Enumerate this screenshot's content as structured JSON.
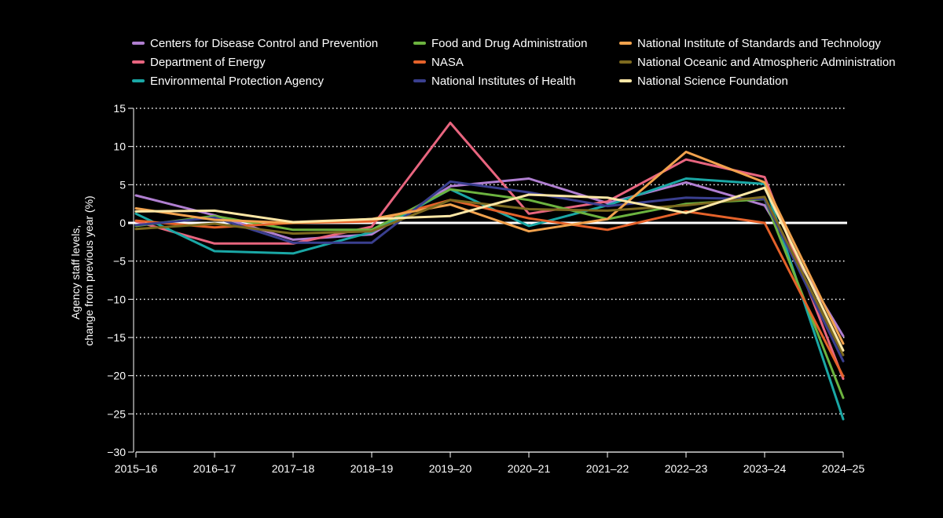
{
  "chart_data": {
    "type": "line",
    "title": "",
    "xlabel": "",
    "ylabel": "Agency staff levels, change from previous year (%)",
    "ylabel_lines": [
      "Agency staff levels,",
      "change from previous year (%)"
    ],
    "ylim": [
      -30,
      15
    ],
    "yticks": [
      15,
      10,
      5,
      0,
      -5,
      -10,
      -15,
      -20,
      -25,
      -30
    ],
    "ytick_labels": [
      "15",
      "10",
      "5",
      "0",
      "−5",
      "−10",
      "−15",
      "−20",
      "−25",
      "−30"
    ],
    "categories": [
      "2015–16",
      "2016–17",
      "2017–18",
      "2018–19",
      "2019–20",
      "2020–21",
      "2021–22",
      "2022–23",
      "2023–24",
      "2024–25"
    ],
    "grid": true,
    "legend_position": "top",
    "series": [
      {
        "name": "Centers for Disease Control and Prevention",
        "color": "#b07fd1",
        "values": [
          3.6,
          1.0,
          -2.2,
          -1.5,
          4.8,
          5.8,
          2.6,
          5.3,
          2.3,
          -14.8
        ]
      },
      {
        "name": "Department of Energy",
        "color": "#e8657f",
        "values": [
          0.2,
          -2.7,
          -2.7,
          -0.5,
          13.1,
          1.2,
          2.8,
          8.3,
          6.0,
          -20.4
        ]
      },
      {
        "name": "Environmental Protection Agency",
        "color": "#1aa7a5",
        "values": [
          1.2,
          -3.7,
          -4.0,
          -1.2,
          4.4,
          -0.4,
          2.3,
          5.8,
          5.1,
          -25.7
        ]
      },
      {
        "name": "Food and Drug Administration",
        "color": "#6cb33f",
        "values": [
          -0.4,
          0.9,
          -0.9,
          -0.9,
          4.4,
          3.0,
          0.5,
          2.5,
          3.1,
          -22.9
        ]
      },
      {
        "name": "NASA",
        "color": "#e5622a",
        "values": [
          0.3,
          -0.6,
          0.0,
          0.2,
          3.0,
          0.6,
          -0.9,
          1.5,
          0.0,
          -20.1
        ]
      },
      {
        "name": "National Institutes of Health",
        "color": "#3a3f8f",
        "values": [
          -0.3,
          0.7,
          -2.6,
          -2.6,
          5.4,
          4.0,
          2.2,
          3.3,
          3.1,
          -18.1
        ]
      },
      {
        "name": "National Institute of Standards and Technology",
        "color": "#f1a24d",
        "values": [
          1.9,
          0.4,
          0.0,
          0.5,
          2.4,
          -1.1,
          0.5,
          9.3,
          5.3,
          -15.8
        ]
      },
      {
        "name": "National Oceanic and Atmospheric Administration",
        "color": "#7d6a1f",
        "values": [
          -0.8,
          -0.1,
          -1.4,
          -1.1,
          3.0,
          1.8,
          1.6,
          2.3,
          3.4,
          -17.3
        ]
      },
      {
        "name": "National Science Foundation",
        "color": "#fde7a6",
        "values": [
          1.5,
          1.6,
          0.1,
          0.5,
          0.9,
          3.7,
          3.3,
          1.3,
          4.6,
          -16.7
        ]
      }
    ]
  },
  "legend": [
    {
      "label": "Centers for Disease Control and Prevention",
      "color": "#b07fd1"
    },
    {
      "label": "Department of Energy",
      "color": "#e8657f"
    },
    {
      "label": "Environmental Protection Agency",
      "color": "#1aa7a5"
    },
    {
      "label": "Food and Drug Administration",
      "color": "#6cb33f"
    },
    {
      "label": "NASA",
      "color": "#e5622a"
    },
    {
      "label": "National Institutes of Health",
      "color": "#3a3f8f"
    },
    {
      "label": "National Institute of Standards and Technology",
      "color": "#f1a24d"
    },
    {
      "label": "National Oceanic and Atmospheric Administration",
      "color": "#7d6a1f"
    },
    {
      "label": "National Science Foundation",
      "color": "#fde7a6"
    }
  ]
}
